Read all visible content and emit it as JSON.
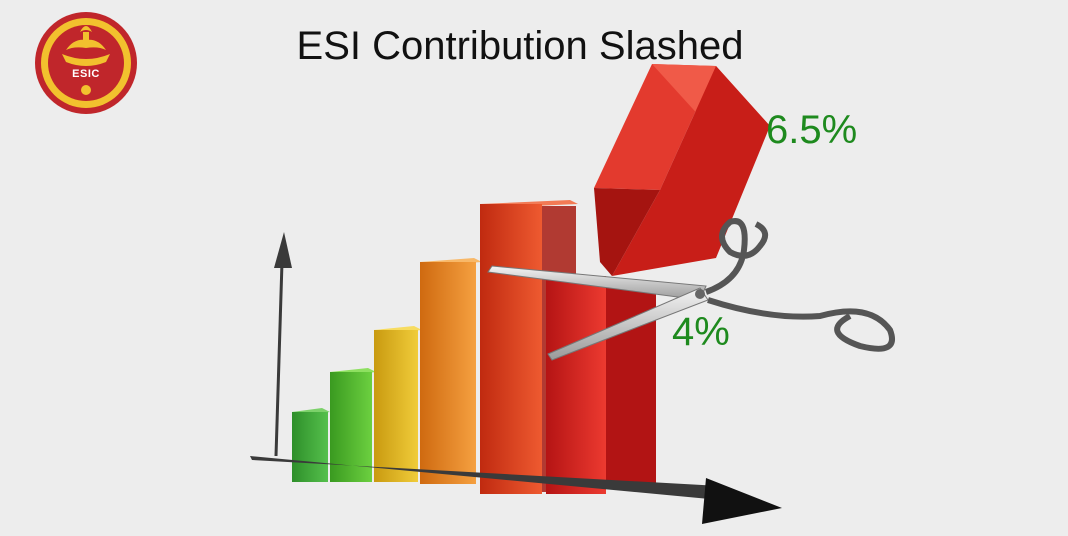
{
  "title": "ESI Contribution Slashed",
  "logo": {
    "text": "ESIC",
    "colors": {
      "ring": "#c0262b",
      "ring_dark": "#8d1a1e",
      "accent": "#f2c12e"
    },
    "icon": "lamp-hands-emblem"
  },
  "labels": {
    "old_rate": "6.5%",
    "new_rate": "4%"
  },
  "colors": {
    "background": "#ededed",
    "label_green": "#1e8a1e",
    "bars": [
      "#3fa63a",
      "#53b52a",
      "#d9b31e",
      "#e07f1f",
      "#d83a1c",
      "#d81f1f"
    ],
    "arrow": "#3a3a3a"
  },
  "icons": [
    "scissors-icon",
    "bar-chart-icon",
    "axis-arrow-icon"
  ]
}
